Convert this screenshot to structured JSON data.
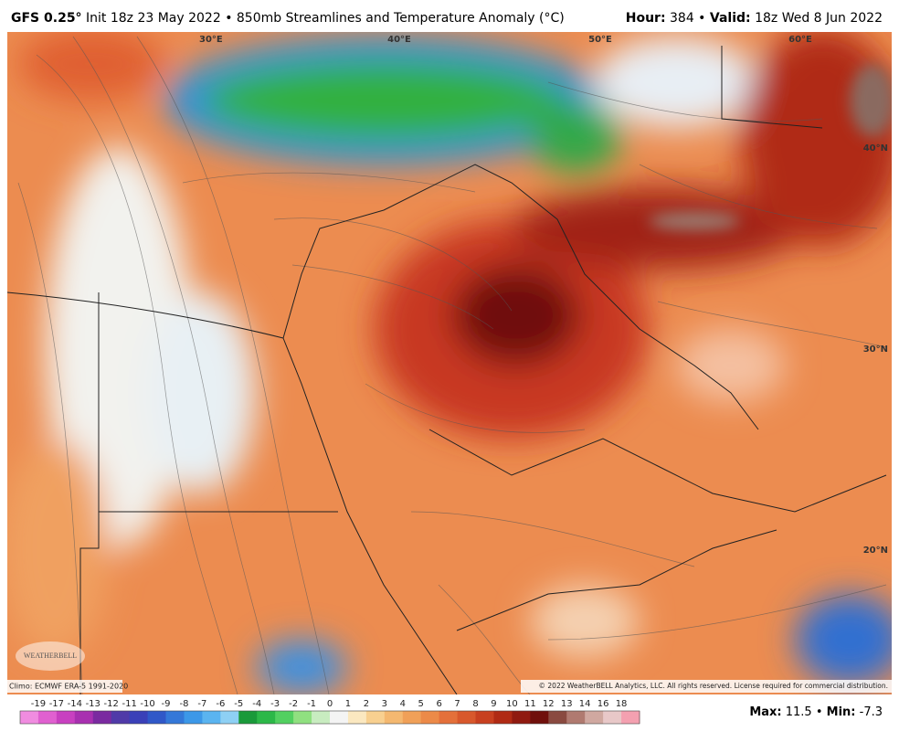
{
  "header": {
    "left": [
      {
        "text": "GFS 0.25°",
        "bold": true
      },
      {
        "text": " Init 18z 23 May 2022 • 850mb Streamlines and Temperature Anomaly (°C)",
        "bold": false
      }
    ],
    "right": [
      {
        "text": "Hour:",
        "bold": true
      },
      {
        "text": " 384 • ",
        "bold": false
      },
      {
        "text": "Valid:",
        "bold": true
      },
      {
        "text": " 18z Wed 8 Jun 2022",
        "bold": false
      }
    ]
  },
  "map": {
    "lon_labels": [
      "30°E",
      "40°E",
      "50°E",
      "60°E"
    ],
    "lat_labels": [
      "40°N",
      "30°N",
      "20°N"
    ],
    "logo": "WEATHERBELL",
    "climo": "Climo: ECMWF ERA-5 1991-2020",
    "copyright": "© 2022 WeatherBELL Analytics, LLC. All rights reserved. License required for commercial distribution."
  },
  "colorbar": {
    "ticks": [
      -19,
      -17,
      -14,
      -13,
      -12,
      -11,
      -10,
      -9,
      -8,
      -7,
      -6,
      -5,
      -4,
      -3,
      -2,
      -1,
      0,
      1,
      2,
      3,
      4,
      5,
      6,
      7,
      8,
      9,
      10,
      11,
      12,
      13,
      14,
      16,
      18
    ],
    "colors": [
      "#f08ce0",
      "#e060d0",
      "#c840c0",
      "#a830b0",
      "#7a2aa0",
      "#503aa8",
      "#3a40b8",
      "#3058c8",
      "#3478d8",
      "#3c98e8",
      "#5ab4f0",
      "#8ed0f4",
      "#1a9a3a",
      "#2cb848",
      "#52d060",
      "#90e080",
      "#c8ecc0",
      "#f4f4f4",
      "#fbe8c0",
      "#f8d090",
      "#f4b870",
      "#f0a058",
      "#ec8a48",
      "#e4703a",
      "#d8582c",
      "#c84020",
      "#b02a14",
      "#901a10",
      "#70100c",
      "#8a4a40",
      "#b07a70",
      "#d0a8a0",
      "#e8c8c8",
      "#f4a0b0"
    ]
  },
  "footer": [
    {
      "text": "Max:",
      "bold": true
    },
    {
      "text": " 11.5 • ",
      "bold": false
    },
    {
      "text": "Min:",
      "bold": true
    },
    {
      "text": " -7.3",
      "bold": false
    }
  ]
}
